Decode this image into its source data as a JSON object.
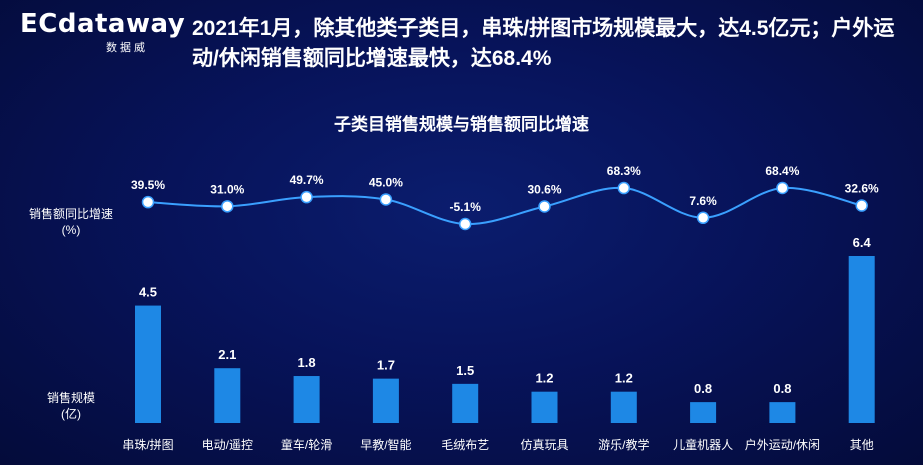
{
  "logo": {
    "main": "ECdataway",
    "sub": "数据威"
  },
  "headline": "2021年1月，除其他类子类目，串珠/拼图市场规模最大，达4.5亿元；户外运动/休闲销售额同比增速最快，达68.4%",
  "colors": {
    "bar": "#1e88e5",
    "line": "#3aa0ff",
    "dot": "#ffffff",
    "background": "#07135a"
  },
  "chart_data": {
    "type": "bar",
    "title": "子类目销售规模与销售额同比增速",
    "categories": [
      "串珠/拼图",
      "电动/遥控",
      "童车/轮滑",
      "早教/智能",
      "毛绒布艺",
      "仿真玩具",
      "游乐/教学",
      "儿童机器人",
      "户外运动/休闲",
      "其他"
    ],
    "series": [
      {
        "name_line1": "销售规模",
        "name_line2": "(亿)",
        "type": "bar",
        "values": [
          4.5,
          2.1,
          1.8,
          1.7,
          1.5,
          1.2,
          1.2,
          0.8,
          0.8,
          6.4
        ],
        "labels": [
          "4.5",
          "2.1",
          "1.8",
          "1.7",
          "1.5",
          "1.2",
          "1.2",
          "0.8",
          "0.8",
          "6.4"
        ]
      },
      {
        "name_line1": "销售额同比增速",
        "name_line2": "(%)",
        "type": "line",
        "values": [
          39.5,
          31.0,
          49.7,
          45.0,
          -5.1,
          30.6,
          68.3,
          7.6,
          68.4,
          32.6
        ],
        "labels": [
          "39.5%",
          "31.0%",
          "49.7%",
          "45.0%",
          "-5.1%",
          "30.6%",
          "68.3%",
          "7.6%",
          "68.4%",
          "32.6%"
        ]
      }
    ],
    "grid": false,
    "legend": "left"
  }
}
